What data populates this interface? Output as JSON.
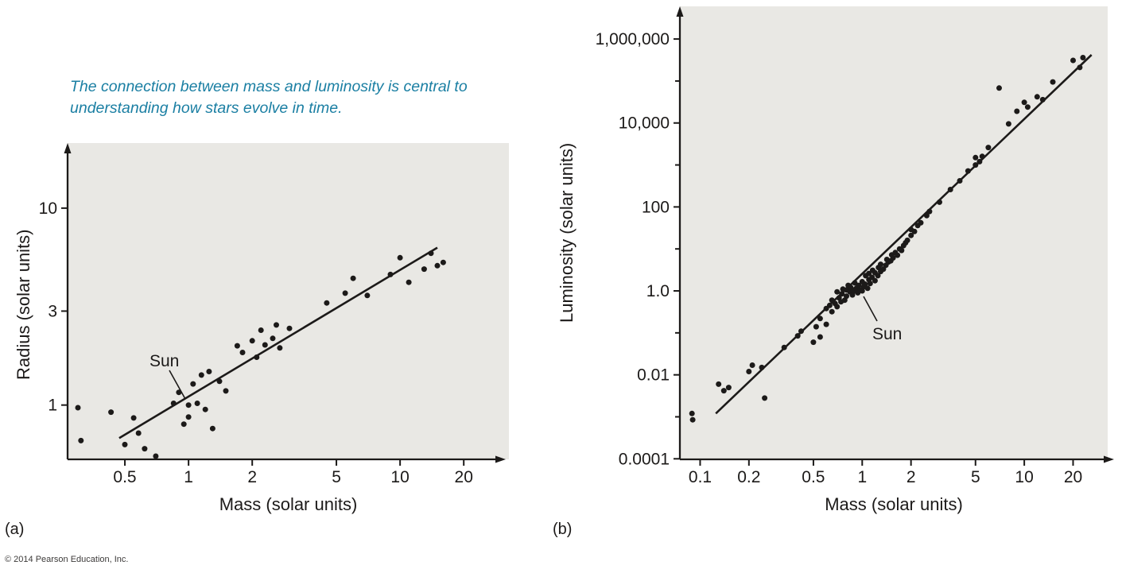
{
  "figure": {
    "caption": "The connection between mass and luminosity is central to understanding how stars evolve in time.",
    "panel_a_label": "(a)",
    "panel_b_label": "(b)",
    "copyright": "© 2014 Pearson Education, Inc."
  },
  "colors": {
    "caption": "#1b7fa3",
    "plot_background": "#e9e8e4",
    "ink": "#1c1a19"
  },
  "chart_data": [
    {
      "type": "scatter",
      "panel": "a",
      "title": "",
      "xlabel": "Mass (solar units)",
      "ylabel": "Radius (solar units)",
      "x_scale": "log",
      "y_scale": "log",
      "xlim": [
        0.268,
        32.7
      ],
      "ylim": [
        0.53,
        21.4
      ],
      "grid": false,
      "x_ticks": [
        0.5,
        1,
        2,
        5,
        10,
        20
      ],
      "x_tick_labels": [
        "0.5",
        "1",
        "2",
        "5",
        "10",
        "20"
      ],
      "y_ticks": [
        1,
        3,
        10
      ],
      "y_tick_labels": [
        "1",
        "3",
        "10"
      ],
      "fit_line": {
        "x1": 0.47,
        "y1": 0.68,
        "x2": 15.0,
        "y2": 6.3
      },
      "annotation": {
        "label": "Sun",
        "x": 1,
        "y": 1
      },
      "points": [
        [
          0.3,
          0.97
        ],
        [
          0.31,
          0.66
        ],
        [
          0.43,
          0.92
        ],
        [
          0.5,
          0.63
        ],
        [
          0.55,
          0.86
        ],
        [
          0.58,
          0.72
        ],
        [
          0.62,
          0.6
        ],
        [
          0.7,
          0.55
        ],
        [
          0.85,
          1.02
        ],
        [
          0.9,
          1.16
        ],
        [
          0.95,
          0.8
        ],
        [
          1.0,
          1.0
        ],
        [
          1.0,
          0.87
        ],
        [
          1.05,
          1.28
        ],
        [
          1.1,
          1.02
        ],
        [
          1.15,
          1.42
        ],
        [
          1.2,
          0.95
        ],
        [
          1.25,
          1.48
        ],
        [
          1.3,
          0.76
        ],
        [
          1.4,
          1.32
        ],
        [
          1.5,
          1.18
        ],
        [
          1.7,
          2.0
        ],
        [
          1.8,
          1.85
        ],
        [
          2.0,
          2.12
        ],
        [
          2.1,
          1.75
        ],
        [
          2.2,
          2.4
        ],
        [
          2.3,
          2.02
        ],
        [
          2.5,
          2.18
        ],
        [
          2.6,
          2.55
        ],
        [
          2.7,
          1.95
        ],
        [
          3.0,
          2.45
        ],
        [
          4.5,
          3.3
        ],
        [
          5.5,
          3.7
        ],
        [
          6.0,
          4.4
        ],
        [
          7.0,
          3.6
        ],
        [
          9.0,
          4.6
        ],
        [
          10.0,
          5.6
        ],
        [
          11.0,
          4.2
        ],
        [
          13.0,
          4.9
        ],
        [
          14.0,
          5.9
        ],
        [
          15.0,
          5.1
        ],
        [
          16.0,
          5.3
        ]
      ]
    },
    {
      "type": "scatter",
      "panel": "b",
      "title": "",
      "xlabel": "Mass (solar units)",
      "ylabel": "Luminosity (solar units)",
      "x_scale": "log",
      "y_scale": "log",
      "xlim": [
        0.075,
        32.7
      ],
      "ylim": [
        9.7e-05,
        6000000
      ],
      "grid": false,
      "x_ticks": [
        0.1,
        0.2,
        0.5,
        1,
        2,
        5,
        10,
        20
      ],
      "x_tick_labels": [
        "0.1",
        "0.2",
        "0.5",
        "1",
        "2",
        "5",
        "10",
        "20"
      ],
      "y_ticks": [
        0.0001,
        0.01,
        1,
        100,
        10000,
        1000000
      ],
      "y_tick_labels": [
        "0.0001",
        "0.01",
        "1.0",
        "100",
        "10,000",
        "1,000,000"
      ],
      "y_minor_ticks": [
        0.001,
        0.1,
        10,
        1000,
        100000
      ],
      "fit_line": {
        "x1": 0.125,
        "y1": 0.0012,
        "x2": 26,
        "y2": 420000
      },
      "annotation": {
        "label": "Sun",
        "x": 1,
        "y": 1
      },
      "points": [
        [
          0.089,
          0.0012
        ],
        [
          0.09,
          0.00085
        ],
        [
          0.13,
          0.006
        ],
        [
          0.14,
          0.0042
        ],
        [
          0.15,
          0.005
        ],
        [
          0.2,
          0.012
        ],
        [
          0.21,
          0.017
        ],
        [
          0.24,
          0.015
        ],
        [
          0.25,
          0.0028
        ],
        [
          0.33,
          0.045
        ],
        [
          0.4,
          0.085
        ],
        [
          0.42,
          0.11
        ],
        [
          0.5,
          0.06
        ],
        [
          0.52,
          0.14
        ],
        [
          0.55,
          0.08
        ],
        [
          0.55,
          0.22
        ],
        [
          0.6,
          0.16
        ],
        [
          0.6,
          0.38
        ],
        [
          0.63,
          0.45
        ],
        [
          0.65,
          0.32
        ],
        [
          0.65,
          0.6
        ],
        [
          0.68,
          0.5
        ],
        [
          0.7,
          0.42
        ],
        [
          0.7,
          0.95
        ],
        [
          0.72,
          0.68
        ],
        [
          0.74,
          0.55
        ],
        [
          0.75,
          0.85
        ],
        [
          0.76,
          1.1
        ],
        [
          0.78,
          0.6
        ],
        [
          0.8,
          0.75
        ],
        [
          0.8,
          1.05
        ],
        [
          0.82,
          1.35
        ],
        [
          0.84,
          0.95
        ],
        [
          0.85,
          1.2
        ],
        [
          0.87,
          0.8
        ],
        [
          0.88,
          1.05
        ],
        [
          0.9,
          1.0
        ],
        [
          0.9,
          1.55
        ],
        [
          0.92,
          1.15
        ],
        [
          0.94,
          0.9
        ],
        [
          0.95,
          1.35
        ],
        [
          0.97,
          1.05
        ],
        [
          1.0,
          1.0
        ],
        [
          1.0,
          1.65
        ],
        [
          1.02,
          1.25
        ],
        [
          1.04,
          1.45
        ],
        [
          1.05,
          2.3
        ],
        [
          1.08,
          1.15
        ],
        [
          1.1,
          1.85
        ],
        [
          1.1,
          2.6
        ],
        [
          1.12,
          1.5
        ],
        [
          1.15,
          2.1
        ],
        [
          1.16,
          3.1
        ],
        [
          1.2,
          1.75
        ],
        [
          1.2,
          2.7
        ],
        [
          1.25,
          2.3
        ],
        [
          1.26,
          3.6
        ],
        [
          1.3,
          2.9
        ],
        [
          1.3,
          4.3
        ],
        [
          1.35,
          3.3
        ],
        [
          1.4,
          4.1
        ],
        [
          1.42,
          5.6
        ],
        [
          1.45,
          4.9
        ],
        [
          1.5,
          5.2
        ],
        [
          1.52,
          7.2
        ],
        [
          1.55,
          6.1
        ],
        [
          1.6,
          8.2
        ],
        [
          1.65,
          7.1
        ],
        [
          1.7,
          10
        ],
        [
          1.75,
          9.2
        ],
        [
          1.8,
          12
        ],
        [
          1.85,
          14
        ],
        [
          1.9,
          16
        ],
        [
          2.0,
          21
        ],
        [
          2.0,
          29
        ],
        [
          2.1,
          26
        ],
        [
          2.2,
          36
        ],
        [
          2.3,
          42
        ],
        [
          2.5,
          62
        ],
        [
          2.6,
          78
        ],
        [
          3.0,
          130
        ],
        [
          3.5,
          260
        ],
        [
          4.0,
          420
        ],
        [
          4.5,
          720
        ],
        [
          5.0,
          1000
        ],
        [
          5.0,
          1500
        ],
        [
          5.3,
          1200
        ],
        [
          5.5,
          1600
        ],
        [
          6.0,
          2600
        ],
        [
          7.0,
          68000
        ],
        [
          8.0,
          9500
        ],
        [
          9.0,
          19000
        ],
        [
          10,
          31000
        ],
        [
          10.5,
          24000
        ],
        [
          12,
          42000
        ],
        [
          13,
          36000
        ],
        [
          15,
          95000
        ],
        [
          20,
          310000
        ],
        [
          22,
          210000
        ],
        [
          23,
          360000
        ]
      ]
    }
  ]
}
